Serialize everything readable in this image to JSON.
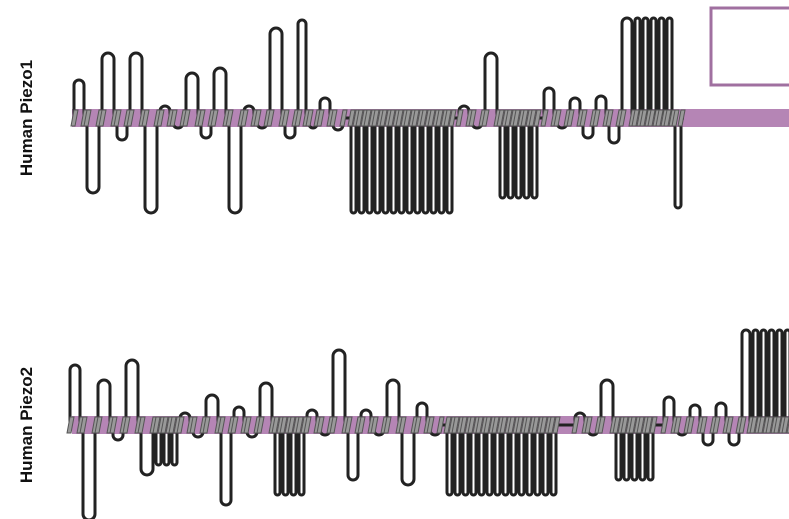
{
  "rows": [
    {
      "label": "Human Piezo1"
    },
    {
      "label": "Human Piezo2"
    }
  ]
}
